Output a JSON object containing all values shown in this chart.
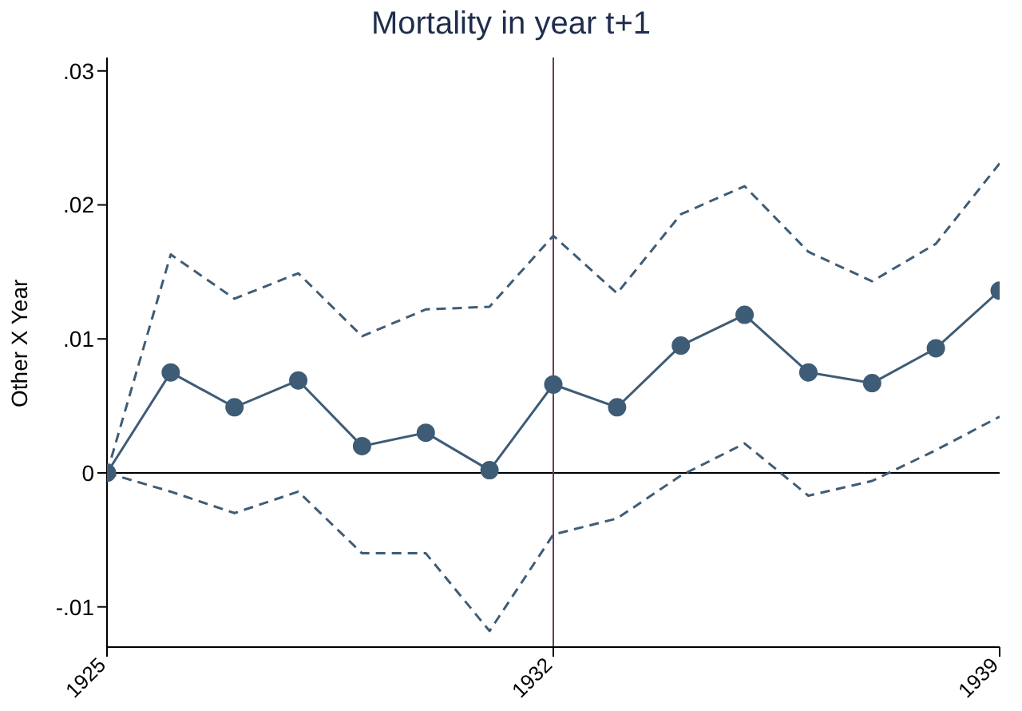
{
  "chart_data": {
    "type": "line",
    "title": "Mortality in year t+1",
    "ylabel": "Other X Year",
    "x": [
      1925,
      1926,
      1927,
      1928,
      1929,
      1930,
      1931,
      1932,
      1933,
      1934,
      1935,
      1936,
      1937,
      1938,
      1939
    ],
    "series": [
      {
        "color": "#3e5c76",
        "marker": "circle",
        "line_style": "solid",
        "values": [
          0,
          0.0075,
          0.0049,
          0.0069,
          0.002,
          0.003,
          0.0002,
          0.0066,
          0.0049,
          0.0095,
          0.0118,
          0.0075,
          0.0067,
          0.0093,
          0.0136
        ]
      },
      {
        "color": "#3e5c76",
        "marker": "none",
        "line_style": "dashed",
        "values": [
          0,
          0.0163,
          0.013,
          0.0149,
          0.0102,
          0.0122,
          0.0124,
          0.0177,
          0.0134,
          0.0193,
          0.0214,
          0.0165,
          0.0143,
          0.0171,
          0.0231
        ]
      },
      {
        "color": "#3e5c76",
        "marker": "none",
        "line_style": "dashed",
        "values": [
          0,
          -0.0014,
          -0.003,
          -0.0014,
          -0.006,
          -0.006,
          -0.0118,
          -0.0046,
          -0.0034,
          -0.0002,
          0.0022,
          -0.0017,
          -0.0006,
          0.0017,
          0.0042
        ]
      }
    ],
    "xlim": [
      1925,
      1939
    ],
    "xticks": [
      1925,
      1932,
      1939
    ],
    "ylim": [
      -0.013,
      0.031
    ],
    "yticks": [
      {
        "value": -0.01,
        "label": "-.01"
      },
      0,
      {
        "value": 0.01,
        "label": ".01"
      },
      {
        "value": 0.02,
        "label": ".02"
      },
      {
        "value": 0.03,
        "label": ".03"
      }
    ],
    "ref_lines": [
      {
        "axis": "y",
        "value": 0,
        "color": "#000000"
      },
      {
        "axis": "x",
        "value": 1932,
        "color": "#6e3b4e"
      }
    ],
    "grid": false
  }
}
